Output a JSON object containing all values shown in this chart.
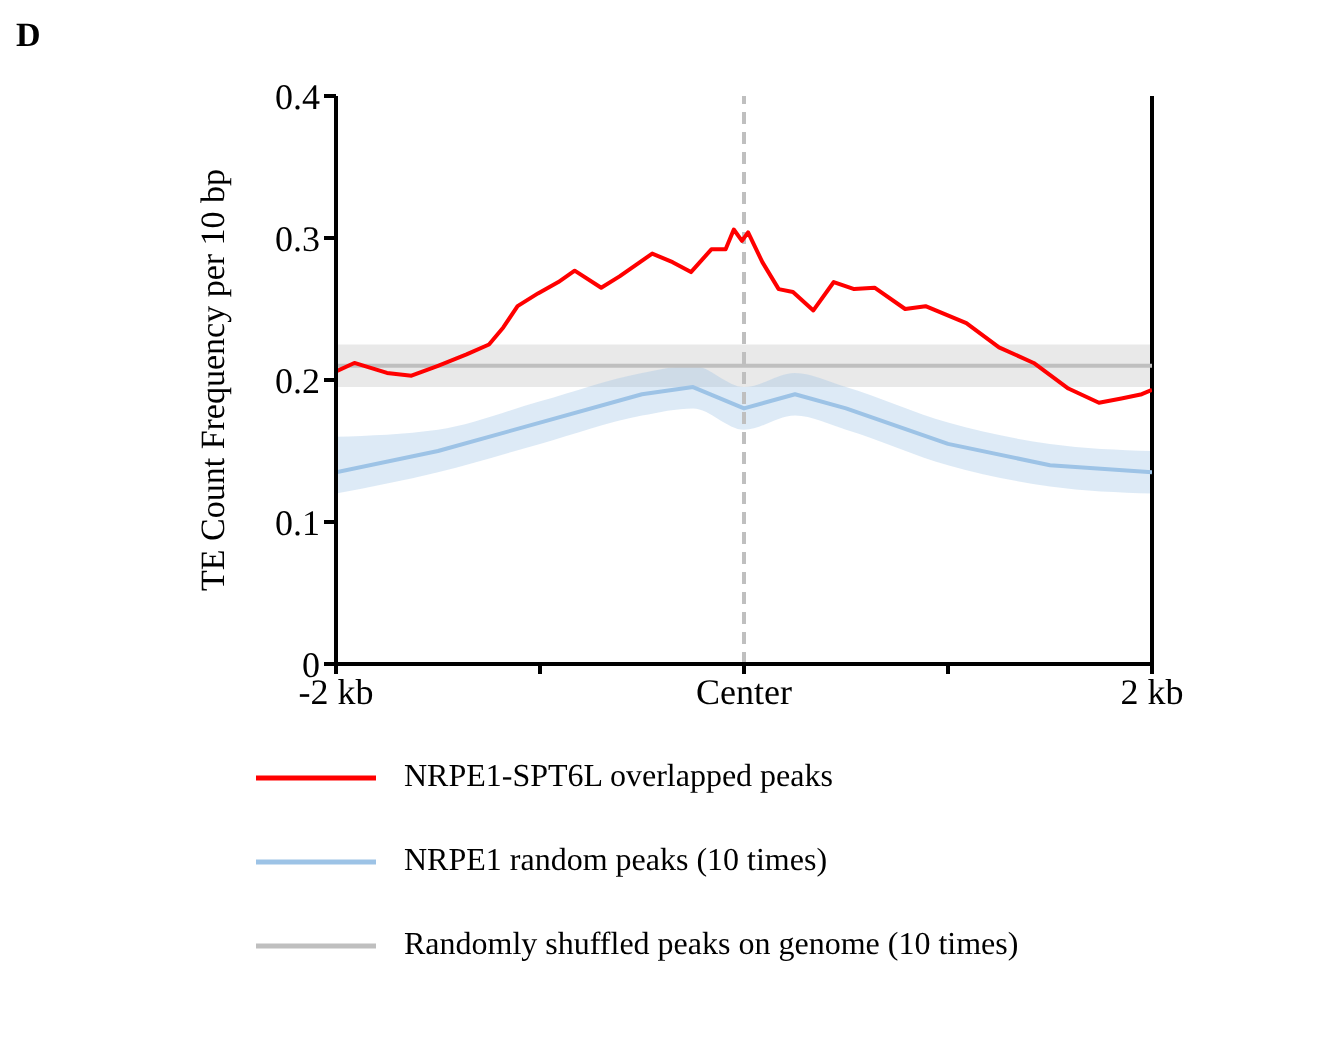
{
  "chart_data": {
    "type": "line",
    "title": "D",
    "ylabel": "TE Count Frequency per 10 bp",
    "xlim": [
      -2,
      2
    ],
    "xticks": [
      {
        "value": -2,
        "label": "-2 kb"
      },
      {
        "value": -1,
        "label": null
      },
      {
        "value": 0,
        "label": "Center"
      },
      {
        "value": 1,
        "label": null
      },
      {
        "value": 2,
        "label": "2 kb"
      }
    ],
    "ylim": [
      0,
      0.4
    ],
    "yticks": [
      0,
      0.1,
      0.2,
      0.3,
      0.4
    ],
    "ref_lines": [
      {
        "axis": "x",
        "value": 0,
        "color": "#bfbfbf",
        "line_style": "dashed"
      }
    ],
    "legend": "bottom",
    "marker": "none",
    "series": [
      {
        "name": "Randomly shuffled peaks on genome (10 times)",
        "color": "#bfbfbf",
        "x": [
          -2,
          -1.5,
          -1,
          -0.5,
          0,
          0.5,
          1,
          1.5,
          2
        ],
        "values": [
          0.21,
          0.21,
          0.21,
          0.21,
          0.21,
          0.21,
          0.21,
          0.21,
          0.21
        ],
        "lower": [
          0.195,
          0.195,
          0.195,
          0.195,
          0.195,
          0.195,
          0.195,
          0.195,
          0.195
        ],
        "upper": [
          0.225,
          0.225,
          0.225,
          0.225,
          0.225,
          0.225,
          0.225,
          0.225,
          0.225
        ]
      },
      {
        "name": "NRPE1 random peaks (10 times)",
        "color": "#9dc3e6",
        "x": [
          -2,
          -1.5,
          -1,
          -0.5,
          -0.25,
          0,
          0.25,
          0.5,
          1,
          1.5,
          2
        ],
        "values": [
          0.135,
          0.15,
          0.17,
          0.19,
          0.195,
          0.18,
          0.19,
          0.18,
          0.155,
          0.14,
          0.135
        ],
        "lower": [
          0.12,
          0.135,
          0.155,
          0.175,
          0.18,
          0.165,
          0.175,
          0.165,
          0.14,
          0.125,
          0.12
        ],
        "upper": [
          0.16,
          0.165,
          0.185,
          0.205,
          0.21,
          0.195,
          0.205,
          0.195,
          0.17,
          0.155,
          0.15
        ]
      },
      {
        "name": "NRPE1-SPT6L overlapped peaks",
        "color": "#ff0000",
        "x": [
          -2,
          -1.91,
          -1.75,
          -1.63,
          -1.5,
          -1.36,
          -1.25,
          -1.18,
          -1.11,
          -1.01,
          -0.91,
          -0.83,
          -0.7,
          -0.61,
          -0.45,
          -0.35,
          -0.26,
          -0.16,
          -0.09,
          -0.05,
          -0.01,
          0.02,
          0.09,
          0.17,
          0.24,
          0.34,
          0.44,
          0.54,
          0.64,
          0.79,
          0.89,
          1.09,
          1.25,
          1.42,
          1.59,
          1.74,
          1.85,
          1.95,
          2
        ],
        "values": [
          0.206,
          0.212,
          0.205,
          0.203,
          0.21,
          0.218,
          0.225,
          0.237,
          0.252,
          0.261,
          0.269,
          0.277,
          0.265,
          0.273,
          0.289,
          0.283,
          0.276,
          0.292,
          0.292,
          0.306,
          0.298,
          0.304,
          0.283,
          0.264,
          0.262,
          0.249,
          0.269,
          0.264,
          0.265,
          0.25,
          0.252,
          0.24,
          0.223,
          0.212,
          0.194,
          0.184,
          0.187,
          0.19,
          0.193
        ]
      }
    ]
  }
}
